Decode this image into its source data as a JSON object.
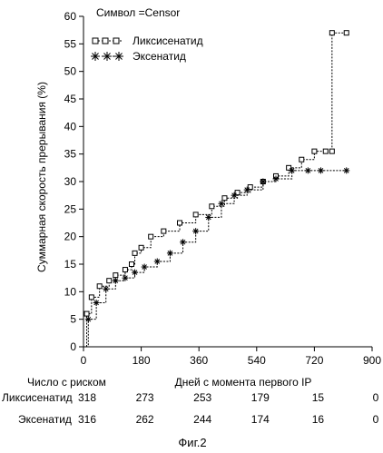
{
  "chart_data": {
    "type": "line",
    "ylabel": "Суммарная скорость прерывания (%)",
    "xlabel": "Дней с момента первого IP",
    "xlim": [
      0,
      900
    ],
    "ylim": [
      0,
      60
    ],
    "xticks": [
      0,
      180,
      360,
      540,
      720,
      900
    ],
    "yticks": [
      0,
      5,
      10,
      15,
      20,
      25,
      30,
      35,
      40,
      45,
      50,
      55,
      60
    ],
    "grid": false,
    "legend_title": "Символ =Censor",
    "legend_position": "top-left",
    "series": [
      {
        "name": "Ликсисенатид",
        "marker": "square",
        "x": [
          0,
          10,
          25,
          50,
          80,
          100,
          130,
          150,
          160,
          180,
          210,
          250,
          300,
          350,
          400,
          440,
          480,
          520,
          560,
          600,
          640,
          680,
          720,
          755,
          775,
          775,
          820
        ],
        "y": [
          0,
          6,
          9,
          11,
          12,
          13,
          14,
          15,
          17,
          18,
          20,
          21,
          22.5,
          24,
          25.5,
          27,
          28,
          29,
          30,
          31,
          32.5,
          34,
          35.5,
          35.5,
          35.5,
          57,
          57
        ]
      },
      {
        "name": "Эксенатид",
        "marker": "star",
        "x": [
          0,
          15,
          40,
          70,
          100,
          130,
          160,
          190,
          230,
          270,
          310,
          350,
          390,
          430,
          470,
          510,
          560,
          600,
          650,
          700,
          740,
          820
        ],
        "y": [
          0,
          5,
          8,
          10.5,
          12,
          12.5,
          13.5,
          14.5,
          15.5,
          17,
          19,
          21,
          23.5,
          26,
          27.5,
          28.5,
          30,
          30.5,
          32,
          32,
          32,
          32
        ]
      }
    ]
  },
  "risk_table": {
    "title": "Число с риском",
    "rows": [
      {
        "label": "Ликсисенатид",
        "values": [
          "318",
          "273",
          "253",
          "179",
          "15",
          "0"
        ]
      },
      {
        "label": "Эксенатид",
        "values": [
          "316",
          "262",
          "244",
          "174",
          "16",
          "0"
        ]
      }
    ]
  },
  "figure_caption": "Фиг.2"
}
